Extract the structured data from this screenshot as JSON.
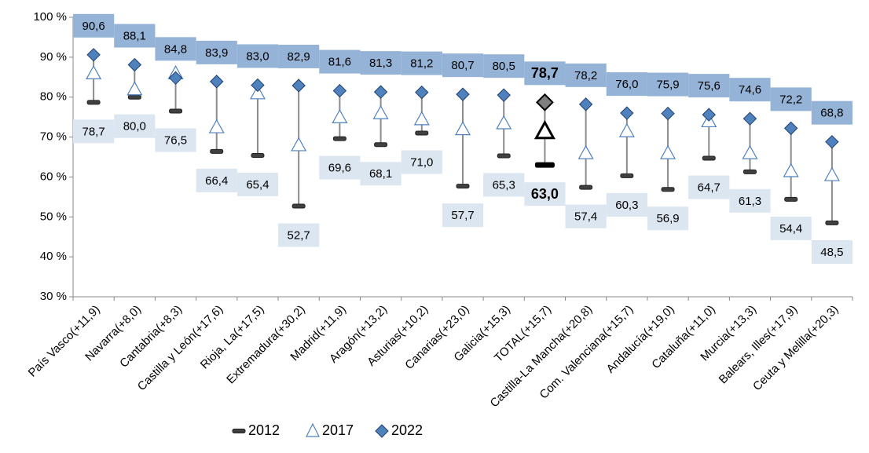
{
  "chart_data": {
    "type": "dot-range",
    "categories": [
      "País Vasco(+11,9)",
      "Navarra(+8,0)",
      "Cantabria(+8,3)",
      "Castilla y León(+17,6)",
      "Rioja, La(+17,5)",
      "Extremadura(+30,2)",
      "Madrid(+11,9)",
      "Aragón(+13,2)",
      "Asturias(+10,2)",
      "Canarias(+23,0)",
      "Galicia(+15,3)",
      "TOTAL(+15,7)",
      "Castilla-La Mancha(+20,8)",
      "Com. Valenciana(+15,7)",
      "Andalucía(+19,0)",
      "Cataluña(+11,0)",
      "Murcia(+13,3)",
      "Balears, Illes(+17,9)",
      "Ceuta y Melilla(+20,3)"
    ],
    "series": [
      {
        "name": "2012",
        "color": "#404040",
        "values": [
          78.7,
          80.0,
          76.5,
          66.4,
          65.4,
          52.7,
          69.6,
          68.1,
          71.0,
          57.7,
          65.3,
          63.0,
          57.4,
          60.3,
          56.9,
          64.7,
          61.3,
          54.4,
          48.5
        ],
        "value_labels": [
          "78,7",
          "80,0",
          "76,5",
          "66,4",
          "65,4",
          "52,7",
          "69,6",
          "68,1",
          "71,0",
          "57,7",
          "65,3",
          "63,0",
          "57,4",
          "60,3",
          "56,9",
          "64,7",
          "61,3",
          "54,4",
          "48,5"
        ]
      },
      {
        "name": "2017",
        "color": "#4f81bd",
        "values": [
          86,
          82,
          86,
          72.5,
          81,
          68,
          75,
          76,
          74.5,
          72,
          73.5,
          71.5,
          66,
          71.5,
          66,
          74,
          66,
          61.5,
          60.5
        ]
      },
      {
        "name": "2022",
        "color": "#4f81bd",
        "values": [
          90.6,
          88.1,
          84.8,
          83.9,
          83.0,
          82.9,
          81.6,
          81.3,
          81.2,
          80.7,
          80.5,
          78.7,
          78.2,
          76.0,
          75.9,
          75.6,
          74.6,
          72.2,
          68.8
        ],
        "value_labels": [
          "90,6",
          "88,1",
          "84,8",
          "83,9",
          "83,0",
          "82,9",
          "81,6",
          "81,3",
          "81,2",
          "80,7",
          "80,5",
          "78,7",
          "78,2",
          "76,0",
          "75,9",
          "75,6",
          "74,6",
          "72,2",
          "68,8"
        ]
      }
    ],
    "ylim": [
      30,
      100
    ],
    "yticks": [
      {
        "value": 30,
        "label": "30 %"
      },
      {
        "value": 40,
        "label": "40 %"
      },
      {
        "value": 50,
        "label": "50 %"
      },
      {
        "value": 60,
        "label": "60 %"
      },
      {
        "value": 70,
        "label": "70 %"
      },
      {
        "value": 80,
        "label": "80 %"
      },
      {
        "value": 90,
        "label": "90 %"
      },
      {
        "value": 100,
        "label": "100 %"
      }
    ],
    "grid": false,
    "highlight_index": 11,
    "legend": "bottom"
  }
}
